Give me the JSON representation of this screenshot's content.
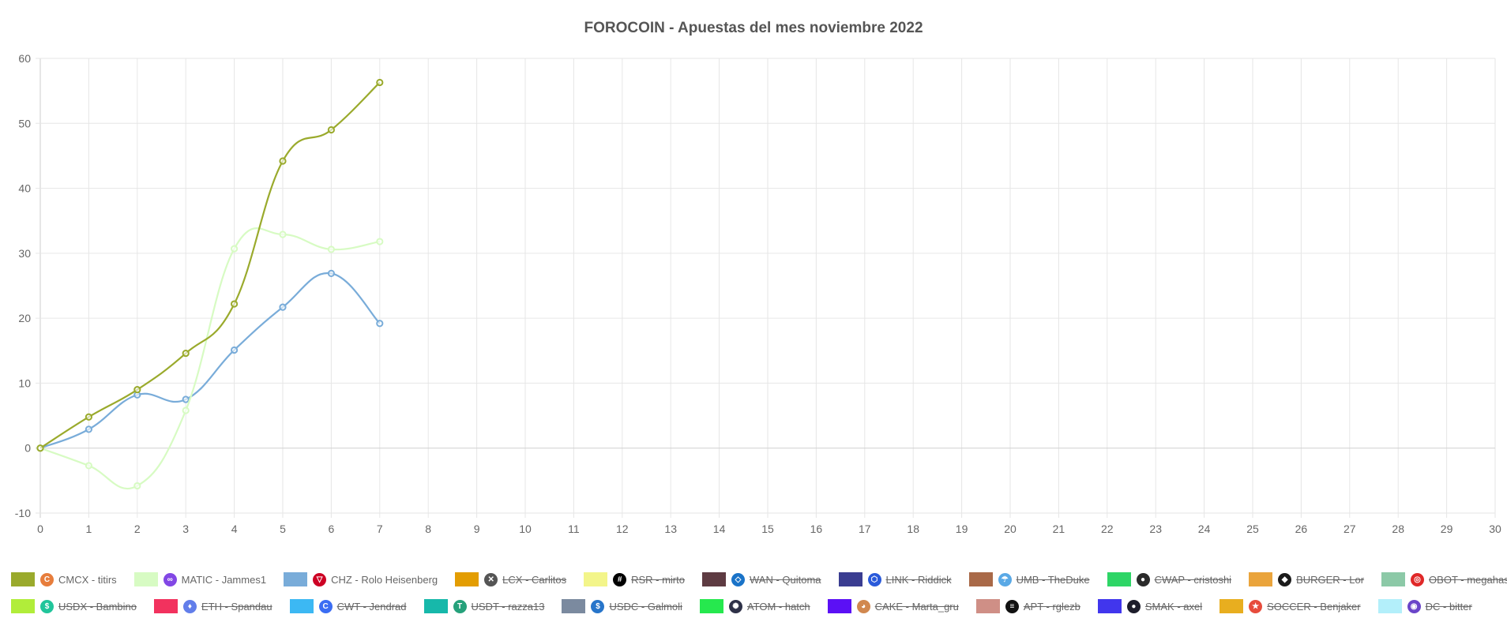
{
  "chart_data": {
    "type": "line",
    "title": "FOROCOIN - Apuestas del mes noviembre 2022",
    "xlabel": "",
    "ylabel": "",
    "x_ticks": [
      "0",
      "1",
      "2",
      "3",
      "4",
      "5",
      "6",
      "7",
      "8",
      "9",
      "10",
      "11",
      "12",
      "13",
      "14",
      "15",
      "16",
      "17",
      "18",
      "19",
      "20",
      "21",
      "22",
      "23",
      "24",
      "25",
      "26",
      "27",
      "28",
      "29",
      "30"
    ],
    "y_ticks": [
      "-10",
      "0",
      "10",
      "20",
      "30",
      "40",
      "50",
      "60"
    ],
    "xlim": [
      0,
      30
    ],
    "ylim": [
      -10,
      60
    ],
    "grid": true,
    "legend_position": "bottom",
    "series": [
      {
        "name": "CMCX - titirs",
        "color": "#9aaa2c",
        "visible": true,
        "icon": "cmcx-icon",
        "x": [
          0,
          1,
          2,
          3,
          4,
          5,
          6,
          7
        ],
        "values": [
          0,
          4.8,
          9,
          14.6,
          22.2,
          44.2,
          49,
          56.3
        ]
      },
      {
        "name": "MATIC - Jammes1",
        "color": "#d7fbc3",
        "visible": true,
        "icon": "matic-icon",
        "x": [
          0,
          1,
          2,
          3,
          4,
          5,
          6,
          7
        ],
        "values": [
          0,
          -2.7,
          -5.8,
          5.8,
          30.7,
          32.9,
          30.6,
          31.8
        ]
      },
      {
        "name": "CHZ - Rolo Heisenberg",
        "color": "#79acd9",
        "visible": true,
        "icon": "chz-icon",
        "x": [
          0,
          1,
          2,
          3,
          4,
          5,
          6,
          7
        ],
        "values": [
          0,
          2.9,
          8.2,
          7.5,
          15.1,
          21.7,
          26.9,
          19.2
        ]
      },
      {
        "name": "LCX - Carlitos",
        "color": "#e39d02",
        "visible": false,
        "icon": "lcx-icon",
        "values": []
      },
      {
        "name": "RSR - mirto",
        "color": "#f3f58a",
        "visible": false,
        "icon": "rsr-icon",
        "values": []
      },
      {
        "name": "WAN - Quitoma",
        "color": "#5e3b42",
        "visible": false,
        "icon": "wan-icon",
        "values": []
      },
      {
        "name": "LINK - Riddick",
        "color": "#3a3d91",
        "visible": false,
        "icon": "link-icon",
        "values": []
      },
      {
        "name": "UMB - TheDuke",
        "color": "#a96948",
        "visible": false,
        "icon": "umb-icon",
        "values": []
      },
      {
        "name": "CWAP - cristoshi",
        "color": "#2ed566",
        "visible": false,
        "icon": "cwap-icon",
        "values": []
      },
      {
        "name": "BURGER - Lor",
        "color": "#eaa43c",
        "visible": false,
        "icon": "burger-icon",
        "values": []
      },
      {
        "name": "OBOT - megahash",
        "color": "#8cc9a7",
        "visible": false,
        "icon": "obot-icon",
        "values": []
      },
      {
        "name": "USDX - Bambino",
        "color": "#b1ed3a",
        "visible": false,
        "icon": "usdx-icon",
        "values": []
      },
      {
        "name": "ETH - Spandau",
        "color": "#f2325e",
        "visible": false,
        "icon": "eth-icon",
        "values": []
      },
      {
        "name": "CWT - Jendrad",
        "color": "#3cb8f3",
        "visible": false,
        "icon": "cwt-icon",
        "values": []
      },
      {
        "name": "USDT - razza13",
        "color": "#17b8aa",
        "visible": false,
        "icon": "usdt-icon",
        "values": []
      },
      {
        "name": "USDC - Galmoli",
        "color": "#7b8a9f",
        "visible": false,
        "icon": "usdc-icon",
        "values": []
      },
      {
        "name": "ATOM - hatch",
        "color": "#26e84e",
        "visible": false,
        "icon": "atom-icon",
        "values": []
      },
      {
        "name": "CAKE - Marta_gru",
        "color": "#5b10f5",
        "visible": false,
        "icon": "cake-icon",
        "values": []
      },
      {
        "name": "APT - rglezb",
        "color": "#cf8f86",
        "visible": false,
        "icon": "apt-icon",
        "values": []
      },
      {
        "name": "SMAK - axel",
        "color": "#4136ed",
        "visible": false,
        "icon": "smak-icon",
        "values": []
      },
      {
        "name": "SOCCER - Benjaker",
        "color": "#e8ae1f",
        "visible": false,
        "icon": "soccer-icon",
        "values": []
      },
      {
        "name": "DC - bitter",
        "color": "#b3effa",
        "visible": false,
        "icon": "dc-icon",
        "values": []
      }
    ]
  },
  "legend_icon_colors": {
    "cmcx-icon": "#e77d3c",
    "matic-icon": "#8247e5",
    "chz-icon": "#cd0124",
    "lcx-icon": "#555555",
    "rsr-icon": "#000000",
    "wan-icon": "#1a73c8",
    "link-icon": "#2a5ada",
    "umb-icon": "#5aa9e6",
    "cwap-icon": "#2b2b2b",
    "burger-icon": "#1b1b1b",
    "obot-icon": "#e02828",
    "usdx-icon": "#21c59b",
    "eth-icon": "#627eea",
    "cwt-icon": "#3b6df3",
    "usdt-icon": "#26a17b",
    "usdc-icon": "#2775ca",
    "atom-icon": "#2e3148",
    "cake-icon": "#d1884f",
    "apt-icon": "#111111",
    "smak-icon": "#1d1d2b",
    "soccer-icon": "#e74c3c",
    "dc-icon": "#6a45c9"
  }
}
